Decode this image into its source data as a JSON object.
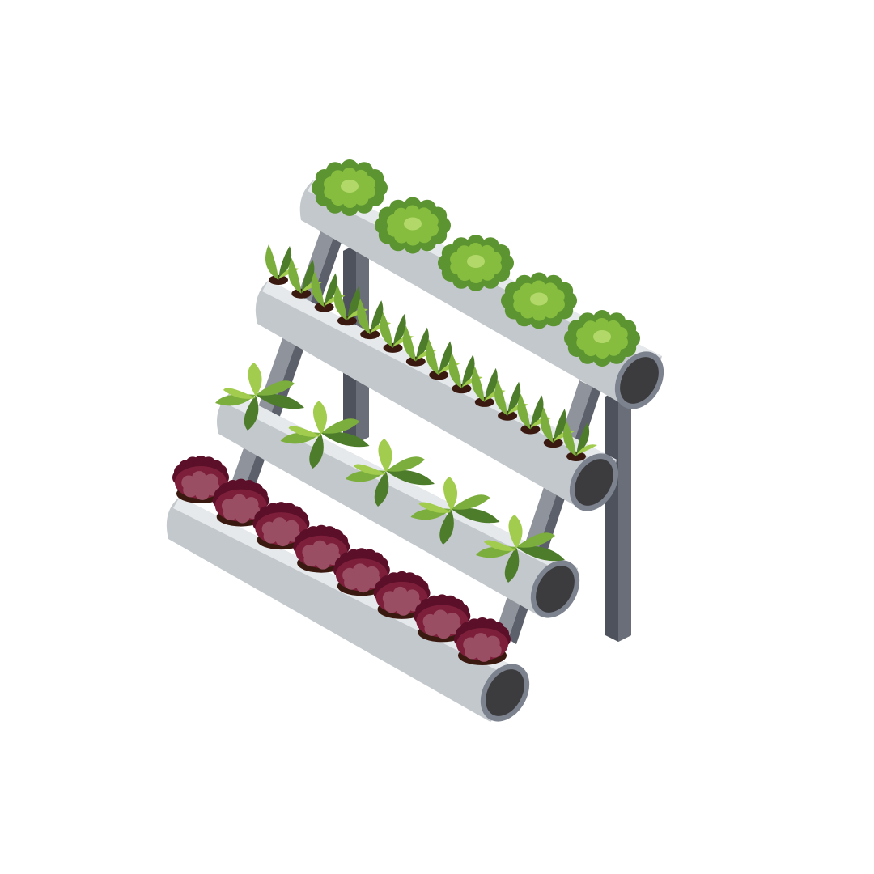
{
  "scene": {
    "subject": "hydroponic-tiered-pipe-rack",
    "tiers": [
      {
        "id": "tier-top",
        "plant": "butterhead-lettuce",
        "count": 5
      },
      {
        "id": "tier-second",
        "plant": "seedling-sprouts",
        "count": 14
      },
      {
        "id": "tier-third",
        "plant": "leafy-greens",
        "count": 5
      },
      {
        "id": "tier-bottom",
        "plant": "red-leaf-lettuce",
        "count": 8
      }
    ]
  },
  "colors": {
    "background": "#ffffff",
    "pipe_body": "#c3c8cc",
    "pipe_top": "#e6e9ec",
    "pipe_rim": "#7c828e",
    "pipe_hole": "#3c3c3e",
    "frame_dark": "#4e525c",
    "frame_mid": "#6a6e78",
    "frame_light": "#8e939c",
    "lettuce_dark": "#5c9431",
    "lettuce_mid": "#86bd3f",
    "lettuce_light": "#b2d86a",
    "leaf_dark": "#4d7c2a",
    "leaf_mid": "#7cae3d",
    "leaf_light": "#a2cc4d",
    "red_dark": "#5b0f28",
    "red_mid": "#7d1f3b",
    "red_light": "#9a4e64",
    "soil": "#3a1a10"
  }
}
